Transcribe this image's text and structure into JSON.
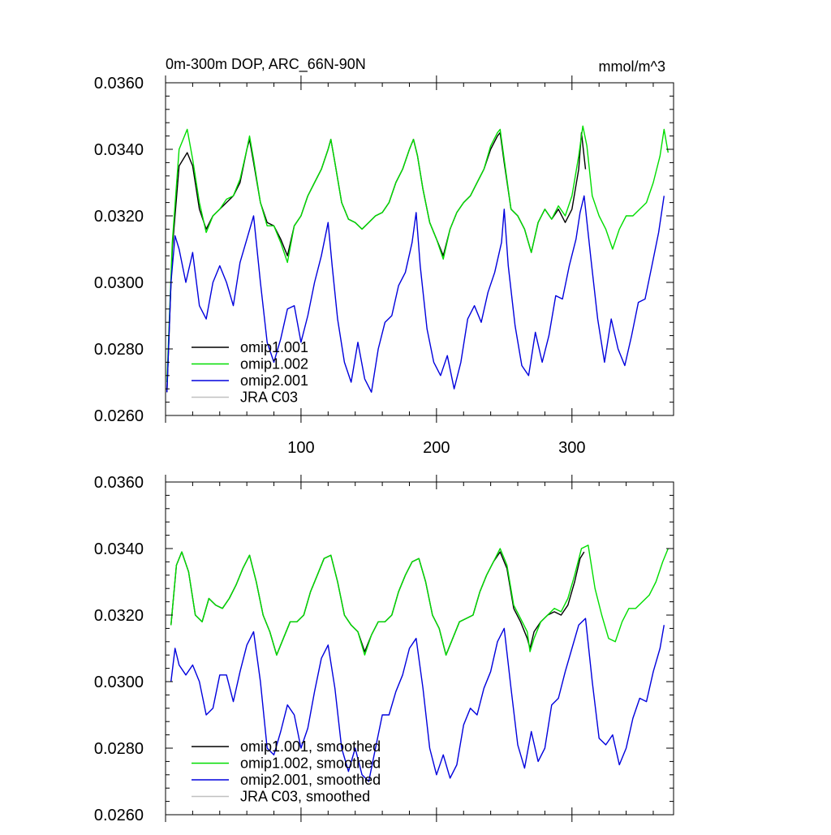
{
  "chart_data": [
    {
      "type": "line",
      "title": "0m-300m DOP, ARC_66N-90N",
      "units": "mmol/m^3",
      "xlim": [
        0,
        375
      ],
      "ylim": [
        0.026,
        0.036
      ],
      "xticks": [
        100,
        200,
        300
      ],
      "xtick_labels": [
        "100",
        "200",
        "300"
      ],
      "yticks": [
        0.026,
        0.028,
        0.03,
        0.032,
        0.034,
        0.036
      ],
      "ytick_labels": [
        "0.0260",
        "0.0280",
        "0.0300",
        "0.0320",
        "0.0340",
        "0.0360"
      ],
      "grid": false,
      "legend_position": "bottom-left",
      "series": [
        {
          "name": "omip1.001",
          "color": "#000000",
          "x": [
            1,
            5,
            10,
            16,
            20,
            25,
            30,
            35,
            40,
            45,
            50,
            55,
            60,
            62,
            65,
            70,
            75,
            80,
            85,
            90,
            95,
            100,
            105,
            110,
            115,
            120,
            122,
            125,
            130,
            135,
            140,
            145,
            150,
            155,
            160,
            165,
            170,
            175,
            180,
            183,
            186,
            190,
            195,
            200,
            205,
            210,
            215,
            220,
            225,
            230,
            235,
            240,
            245,
            247,
            250,
            255,
            260,
            265,
            270,
            275,
            280,
            285,
            290,
            295,
            300,
            305,
            307,
            310
          ],
          "y": [
            0.0267,
            0.031,
            0.0335,
            0.0339,
            0.0335,
            0.0322,
            0.0316,
            0.032,
            0.0322,
            0.0324,
            0.0326,
            0.033,
            0.034,
            0.0343,
            0.0336,
            0.0324,
            0.0318,
            0.0317,
            0.0313,
            0.0308,
            0.0317,
            0.032,
            0.0326,
            0.033,
            0.0334,
            0.034,
            0.0343,
            0.0336,
            0.0324,
            0.0319,
            0.0318,
            0.0316,
            0.0318,
            0.032,
            0.0321,
            0.0324,
            0.033,
            0.0334,
            0.034,
            0.0343,
            0.0338,
            0.0328,
            0.0318,
            0.0313,
            0.0308,
            0.0316,
            0.0321,
            0.0324,
            0.0326,
            0.033,
            0.0334,
            0.034,
            0.0344,
            0.0345,
            0.0336,
            0.0322,
            0.032,
            0.0316,
            0.0309,
            0.0318,
            0.0322,
            0.0319,
            0.0322,
            0.0318,
            0.0322,
            0.0334,
            0.0345,
            0.0334
          ]
        },
        {
          "name": "omip1.002",
          "color": "#00dd00",
          "x": [
            1,
            5,
            10,
            16,
            20,
            25,
            30,
            35,
            40,
            45,
            50,
            55,
            60,
            62,
            65,
            70,
            75,
            80,
            85,
            90,
            95,
            100,
            105,
            110,
            115,
            120,
            122,
            125,
            130,
            135,
            140,
            145,
            150,
            155,
            160,
            165,
            170,
            175,
            180,
            183,
            186,
            190,
            195,
            200,
            205,
            210,
            215,
            220,
            225,
            230,
            235,
            240,
            245,
            247,
            250,
            255,
            260,
            265,
            270,
            275,
            280,
            285,
            290,
            295,
            300,
            305,
            308,
            311,
            315,
            320,
            325,
            330,
            335,
            340,
            345,
            350,
            355,
            360,
            365,
            368,
            371
          ],
          "y": [
            0.027,
            0.0312,
            0.034,
            0.0346,
            0.0337,
            0.0324,
            0.0315,
            0.032,
            0.0322,
            0.0325,
            0.0326,
            0.0331,
            0.034,
            0.0344,
            0.0337,
            0.0324,
            0.0317,
            0.0317,
            0.0312,
            0.0306,
            0.0317,
            0.032,
            0.0326,
            0.033,
            0.0334,
            0.034,
            0.0343,
            0.0336,
            0.0324,
            0.0319,
            0.0318,
            0.0316,
            0.0318,
            0.032,
            0.0321,
            0.0324,
            0.033,
            0.0334,
            0.034,
            0.0343,
            0.0338,
            0.0328,
            0.0318,
            0.0313,
            0.0307,
            0.0316,
            0.0321,
            0.0324,
            0.0326,
            0.033,
            0.0334,
            0.0341,
            0.0345,
            0.0346,
            0.0337,
            0.0322,
            0.032,
            0.0316,
            0.0309,
            0.0318,
            0.0322,
            0.0319,
            0.0323,
            0.032,
            0.0326,
            0.0338,
            0.0347,
            0.0341,
            0.0326,
            0.032,
            0.0316,
            0.031,
            0.0316,
            0.032,
            0.032,
            0.0322,
            0.0324,
            0.033,
            0.0338,
            0.0346,
            0.0339
          ]
        },
        {
          "name": "omip2.001",
          "color": "#0000dd",
          "x": [
            1,
            4,
            7,
            10,
            15,
            20,
            25,
            30,
            35,
            40,
            45,
            50,
            55,
            60,
            65,
            70,
            75,
            80,
            85,
            90,
            95,
            100,
            105,
            110,
            115,
            120,
            123,
            127,
            132,
            137,
            142,
            147,
            152,
            157,
            162,
            167,
            172,
            177,
            182,
            185,
            188,
            193,
            198,
            203,
            208,
            213,
            218,
            223,
            228,
            233,
            238,
            243,
            248,
            250,
            253,
            258,
            263,
            268,
            273,
            278,
            283,
            288,
            293,
            298,
            303,
            306,
            309,
            314,
            319,
            324,
            329,
            334,
            339,
            344,
            349,
            354,
            359,
            364,
            368
          ],
          "y": [
            0.0267,
            0.03,
            0.0314,
            0.031,
            0.03,
            0.0309,
            0.0293,
            0.0289,
            0.03,
            0.0305,
            0.03,
            0.0293,
            0.0306,
            0.0313,
            0.032,
            0.03,
            0.0282,
            0.0276,
            0.0283,
            0.0292,
            0.0293,
            0.0282,
            0.029,
            0.03,
            0.0308,
            0.0318,
            0.0305,
            0.0289,
            0.0276,
            0.027,
            0.0282,
            0.0271,
            0.0267,
            0.028,
            0.0288,
            0.029,
            0.0299,
            0.0303,
            0.0312,
            0.0321,
            0.0305,
            0.0286,
            0.0276,
            0.0272,
            0.0278,
            0.0268,
            0.0276,
            0.0289,
            0.0293,
            0.0288,
            0.0297,
            0.0303,
            0.0312,
            0.0322,
            0.0305,
            0.0287,
            0.0275,
            0.0272,
            0.0285,
            0.0276,
            0.0284,
            0.0296,
            0.0295,
            0.0305,
            0.0313,
            0.0321,
            0.0326,
            0.0307,
            0.0289,
            0.0276,
            0.0289,
            0.028,
            0.0275,
            0.0284,
            0.0294,
            0.0295,
            0.0305,
            0.0315,
            0.0326
          ]
        },
        {
          "name": "JRA C03",
          "color": "#c0c0c0",
          "x": [],
          "y": []
        }
      ]
    },
    {
      "type": "line",
      "title": "",
      "units": "",
      "xlim": [
        0,
        375
      ],
      "ylim": [
        0.026,
        0.036
      ],
      "xticks": [
        100,
        200,
        300
      ],
      "xtick_labels": [],
      "yticks": [
        0.026,
        0.028,
        0.03,
        0.032,
        0.034,
        0.036
      ],
      "ytick_labels": [
        "0.0260",
        "0.0280",
        "0.0300",
        "0.0320",
        "0.0340",
        "0.0360"
      ],
      "grid": false,
      "legend_position": "bottom-left",
      "series": [
        {
          "name": "omip1.001, smoothed",
          "color": "#000000",
          "x": [
            4,
            8,
            12,
            17,
            22,
            27,
            32,
            37,
            42,
            47,
            52,
            57,
            62,
            67,
            72,
            77,
            82,
            87,
            92,
            97,
            102,
            107,
            112,
            117,
            122,
            127,
            132,
            137,
            142,
            147,
            152,
            157,
            162,
            167,
            172,
            177,
            182,
            187,
            192,
            197,
            202,
            207,
            212,
            217,
            222,
            227,
            232,
            237,
            242,
            247,
            252,
            257,
            262,
            267,
            269,
            272,
            277,
            282,
            287,
            292,
            297,
            302,
            306,
            309
          ],
          "y": [
            0.0317,
            0.0335,
            0.0339,
            0.0333,
            0.032,
            0.0318,
            0.0325,
            0.0323,
            0.0322,
            0.0325,
            0.0329,
            0.0334,
            0.0338,
            0.033,
            0.032,
            0.0315,
            0.0308,
            0.0313,
            0.0318,
            0.0318,
            0.032,
            0.0327,
            0.0332,
            0.0337,
            0.0338,
            0.033,
            0.032,
            0.0317,
            0.0315,
            0.0309,
            0.0314,
            0.0318,
            0.0318,
            0.032,
            0.0327,
            0.0332,
            0.0336,
            0.0337,
            0.033,
            0.032,
            0.0316,
            0.0308,
            0.0313,
            0.0318,
            0.0319,
            0.032,
            0.0327,
            0.0332,
            0.0336,
            0.0339,
            0.0334,
            0.0322,
            0.0318,
            0.0313,
            0.031,
            0.0315,
            0.0318,
            0.032,
            0.0321,
            0.032,
            0.0323,
            0.033,
            0.0337,
            0.0339
          ]
        },
        {
          "name": "omip1.002, smoothed",
          "color": "#00dd00",
          "x": [
            4,
            8,
            12,
            17,
            22,
            27,
            32,
            37,
            42,
            47,
            52,
            57,
            62,
            67,
            72,
            77,
            82,
            87,
            92,
            97,
            102,
            107,
            112,
            117,
            122,
            127,
            132,
            137,
            142,
            147,
            152,
            157,
            162,
            167,
            172,
            177,
            182,
            187,
            192,
            197,
            202,
            207,
            212,
            217,
            222,
            227,
            232,
            237,
            242,
            247,
            252,
            257,
            262,
            267,
            269,
            272,
            277,
            282,
            287,
            292,
            297,
            302,
            307,
            312,
            317,
            322,
            327,
            332,
            337,
            342,
            347,
            352,
            357,
            362,
            367,
            371
          ],
          "y": [
            0.0317,
            0.0335,
            0.0339,
            0.0333,
            0.032,
            0.0318,
            0.0325,
            0.0323,
            0.0322,
            0.0325,
            0.0329,
            0.0334,
            0.0338,
            0.033,
            0.032,
            0.0315,
            0.0308,
            0.0313,
            0.0318,
            0.0318,
            0.032,
            0.0327,
            0.0332,
            0.0337,
            0.0338,
            0.033,
            0.032,
            0.0317,
            0.0315,
            0.0308,
            0.0314,
            0.0318,
            0.0318,
            0.032,
            0.0327,
            0.0332,
            0.0336,
            0.0337,
            0.033,
            0.032,
            0.0316,
            0.0308,
            0.0313,
            0.0318,
            0.0319,
            0.032,
            0.0327,
            0.0332,
            0.0336,
            0.034,
            0.0335,
            0.0323,
            0.0319,
            0.0315,
            0.0309,
            0.0313,
            0.0318,
            0.032,
            0.0322,
            0.0321,
            0.0325,
            0.0332,
            0.034,
            0.0341,
            0.0328,
            0.032,
            0.0313,
            0.0312,
            0.0318,
            0.0322,
            0.0322,
            0.0324,
            0.0326,
            0.033,
            0.0336,
            0.034
          ]
        },
        {
          "name": "omip2.001, smoothed",
          "color": "#0000dd",
          "x": [
            4,
            7,
            10,
            15,
            20,
            25,
            30,
            35,
            40,
            45,
            50,
            55,
            60,
            65,
            70,
            75,
            80,
            85,
            90,
            95,
            100,
            105,
            110,
            115,
            120,
            125,
            130,
            135,
            140,
            145,
            150,
            155,
            160,
            165,
            170,
            175,
            180,
            185,
            190,
            195,
            200,
            205,
            210,
            215,
            220,
            225,
            230,
            235,
            240,
            245,
            250,
            255,
            260,
            265,
            270,
            275,
            280,
            285,
            290,
            295,
            300,
            305,
            310,
            315,
            320,
            325,
            330,
            335,
            340,
            345,
            350,
            355,
            360,
            365,
            368
          ],
          "y": [
            0.03,
            0.031,
            0.0305,
            0.0302,
            0.0305,
            0.03,
            0.029,
            0.0292,
            0.0302,
            0.0302,
            0.0294,
            0.0303,
            0.0311,
            0.0315,
            0.03,
            0.028,
            0.0278,
            0.0285,
            0.0293,
            0.029,
            0.028,
            0.0286,
            0.0297,
            0.0307,
            0.0311,
            0.0298,
            0.028,
            0.0273,
            0.028,
            0.0272,
            0.027,
            0.028,
            0.029,
            0.029,
            0.0297,
            0.0302,
            0.031,
            0.0313,
            0.0298,
            0.028,
            0.0272,
            0.0278,
            0.0271,
            0.0275,
            0.0287,
            0.0292,
            0.029,
            0.0298,
            0.0303,
            0.0312,
            0.0316,
            0.0298,
            0.0281,
            0.0274,
            0.0285,
            0.0276,
            0.028,
            0.0293,
            0.0295,
            0.0303,
            0.031,
            0.0317,
            0.0319,
            0.03,
            0.0283,
            0.0281,
            0.0284,
            0.0275,
            0.028,
            0.0289,
            0.0295,
            0.0294,
            0.0303,
            0.031,
            0.0317
          ]
        },
        {
          "name": "JRA C03, smoothed",
          "color": "#c0c0c0",
          "x": [],
          "y": []
        }
      ]
    }
  ]
}
